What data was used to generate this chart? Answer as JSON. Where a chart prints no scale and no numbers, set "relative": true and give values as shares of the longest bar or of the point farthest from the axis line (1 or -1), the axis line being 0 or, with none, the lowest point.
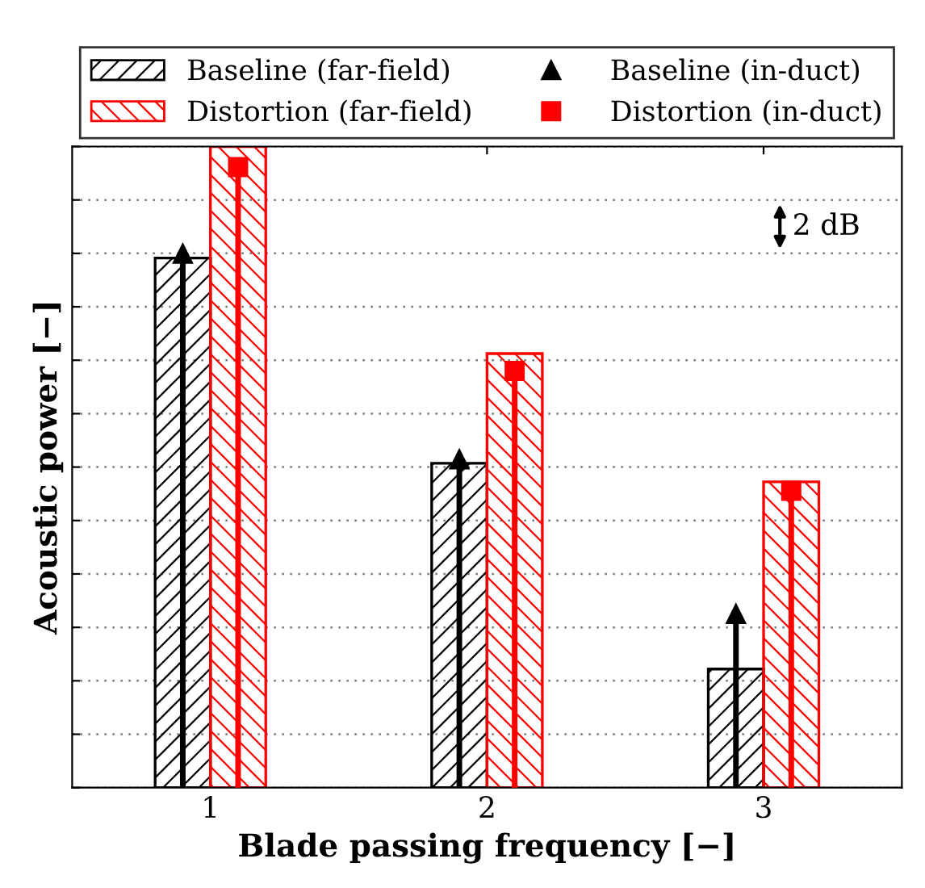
{
  "chart_data": {
    "type": "bar",
    "relative": true,
    "xlabel": "Blade passing frequency [−]",
    "ylabel": "Acoustic power [−]",
    "categories": [
      "1",
      "2",
      "3"
    ],
    "grid": "y",
    "legend": "top",
    "tick_labels": "x",
    "annotations": [
      "2 dB"
    ],
    "series": [
      {
        "name": "Baseline (far-field)",
        "color": "#000000",
        "values": [
          0.826,
          0.506,
          0.185
        ]
      },
      {
        "name": "Distortion (far-field)",
        "color": "#ff0000",
        "values": [
          1.0,
          0.677,
          0.477
        ]
      },
      {
        "name": "Baseline (in-duct)",
        "type": "lollipop",
        "marker": "triangle",
        "color": "#000000",
        "values": [
          0.833,
          0.512,
          0.271
        ]
      },
      {
        "name": "Distortion (in-duct)",
        "type": "lollipop",
        "marker": "square",
        "color": "#ff0000",
        "values": [
          0.968,
          0.65,
          0.463
        ]
      }
    ]
  }
}
